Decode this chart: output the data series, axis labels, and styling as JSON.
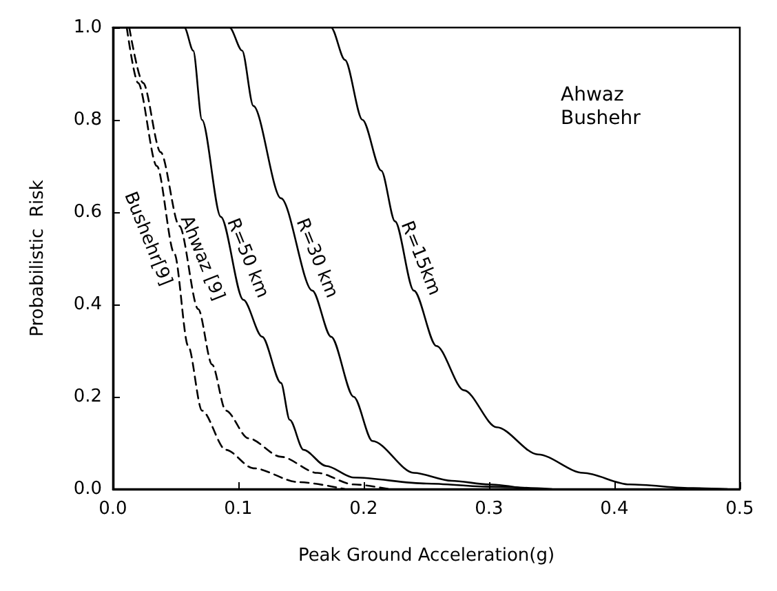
{
  "chart_data": {
    "type": "line",
    "xlabel": "Peak Ground Acceleration(g)",
    "ylabel": "Probabilistic  Risk",
    "xlim": [
      0,
      0.5
    ],
    "xticks": [
      {
        "value": 0,
        "label": "0.0"
      },
      0.1,
      0.2,
      0.3,
      0.4,
      0.5
    ],
    "ylim": [
      0,
      1
    ],
    "yticks": [
      {
        "value": 0,
        "label": "0.0"
      },
      0.2,
      0.4,
      0.6,
      0.8,
      {
        "value": 1,
        "label": "1.0"
      }
    ],
    "grid": false,
    "legend": false,
    "marker": "none",
    "annotations": [
      "Ahwaz",
      "Bushehr"
    ],
    "series": [
      {
        "name": "Bushehr[9]",
        "color": "#000000",
        "line_style": "dashed",
        "x": [
          0.011,
          0.02,
          0.035,
          0.049,
          0.06,
          0.071,
          0.09,
          0.112,
          0.148,
          0.185
        ],
        "values": [
          1,
          0.88,
          0.7,
          0.51,
          0.31,
          0.17,
          0.085,
          0.045,
          0.015,
          0
        ]
      },
      {
        "name": "Ahwaz [9]",
        "color": "#000000",
        "line_style": "dashed",
        "x": [
          0.013,
          0.024,
          0.038,
          0.053,
          0.068,
          0.079,
          0.09,
          0.108,
          0.134,
          0.163,
          0.192,
          0.22
        ],
        "values": [
          1,
          0.88,
          0.73,
          0.57,
          0.39,
          0.27,
          0.17,
          0.11,
          0.07,
          0.035,
          0.01,
          0
        ]
      },
      {
        "name": "R=50 km",
        "color": "#000000",
        "line_style": "solid",
        "x": [
          0,
          0.057,
          0.064,
          0.071,
          0.086,
          0.104,
          0.119,
          0.134,
          0.141,
          0.152,
          0.17,
          0.192,
          0.25,
          0.3,
          0.35
        ],
        "values": [
          1,
          1,
          0.95,
          0.8,
          0.59,
          0.41,
          0.33,
          0.23,
          0.15,
          0.085,
          0.05,
          0.025,
          0.012,
          0.005,
          0
        ]
      },
      {
        "name": "R=30 km",
        "color": "#000000",
        "line_style": "solid",
        "x": [
          0,
          0.093,
          0.103,
          0.112,
          0.134,
          0.159,
          0.174,
          0.192,
          0.207,
          0.24,
          0.27,
          0.3,
          0.33
        ],
        "values": [
          1,
          1,
          0.95,
          0.83,
          0.63,
          0.43,
          0.33,
          0.2,
          0.104,
          0.035,
          0.018,
          0.01,
          0
        ]
      },
      {
        "name": "R=15km",
        "color": "#000000",
        "line_style": "solid",
        "x": [
          0,
          0.174,
          0.185,
          0.199,
          0.214,
          0.225,
          0.24,
          0.258,
          0.28,
          0.306,
          0.339,
          0.375,
          0.412,
          0.463,
          0.49
        ],
        "values": [
          1,
          1,
          0.93,
          0.8,
          0.69,
          0.58,
          0.43,
          0.31,
          0.214,
          0.134,
          0.075,
          0.035,
          0.01,
          0.002,
          0
        ]
      }
    ]
  }
}
